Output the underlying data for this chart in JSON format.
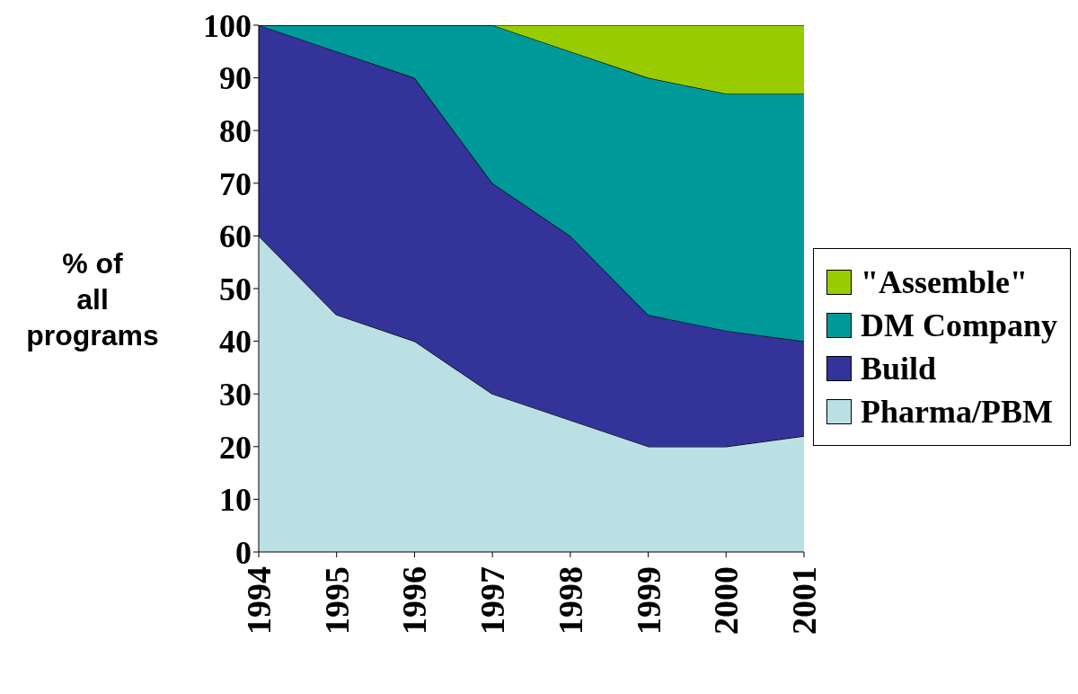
{
  "chart_data": {
    "type": "area",
    "stacked": true,
    "ylabel": "% of all programs",
    "categories": [
      "1994",
      "1995",
      "1996",
      "1997",
      "1998",
      "1999",
      "2000",
      "2001"
    ],
    "series": [
      {
        "name": "Pharma/PBM",
        "color": "#bbe0e3",
        "values": [
          60,
          45,
          40,
          30,
          25,
          20,
          20,
          22
        ]
      },
      {
        "name": "Build",
        "color": "#333399",
        "values": [
          40,
          50,
          50,
          40,
          35,
          25,
          22,
          18
        ]
      },
      {
        "name": "DM Company",
        "color": "#009999",
        "values": [
          0,
          5,
          10,
          30,
          35,
          45,
          45,
          47
        ]
      },
      {
        "name": "\"Assemble\"",
        "color": "#99cc00",
        "values": [
          0,
          0,
          0,
          0,
          5,
          10,
          13,
          13
        ]
      }
    ],
    "ylim": [
      0,
      100
    ],
    "yticks": [
      0,
      10,
      20,
      30,
      40,
      50,
      60,
      70,
      80,
      90,
      100
    ],
    "grid": false,
    "legend": "right"
  }
}
